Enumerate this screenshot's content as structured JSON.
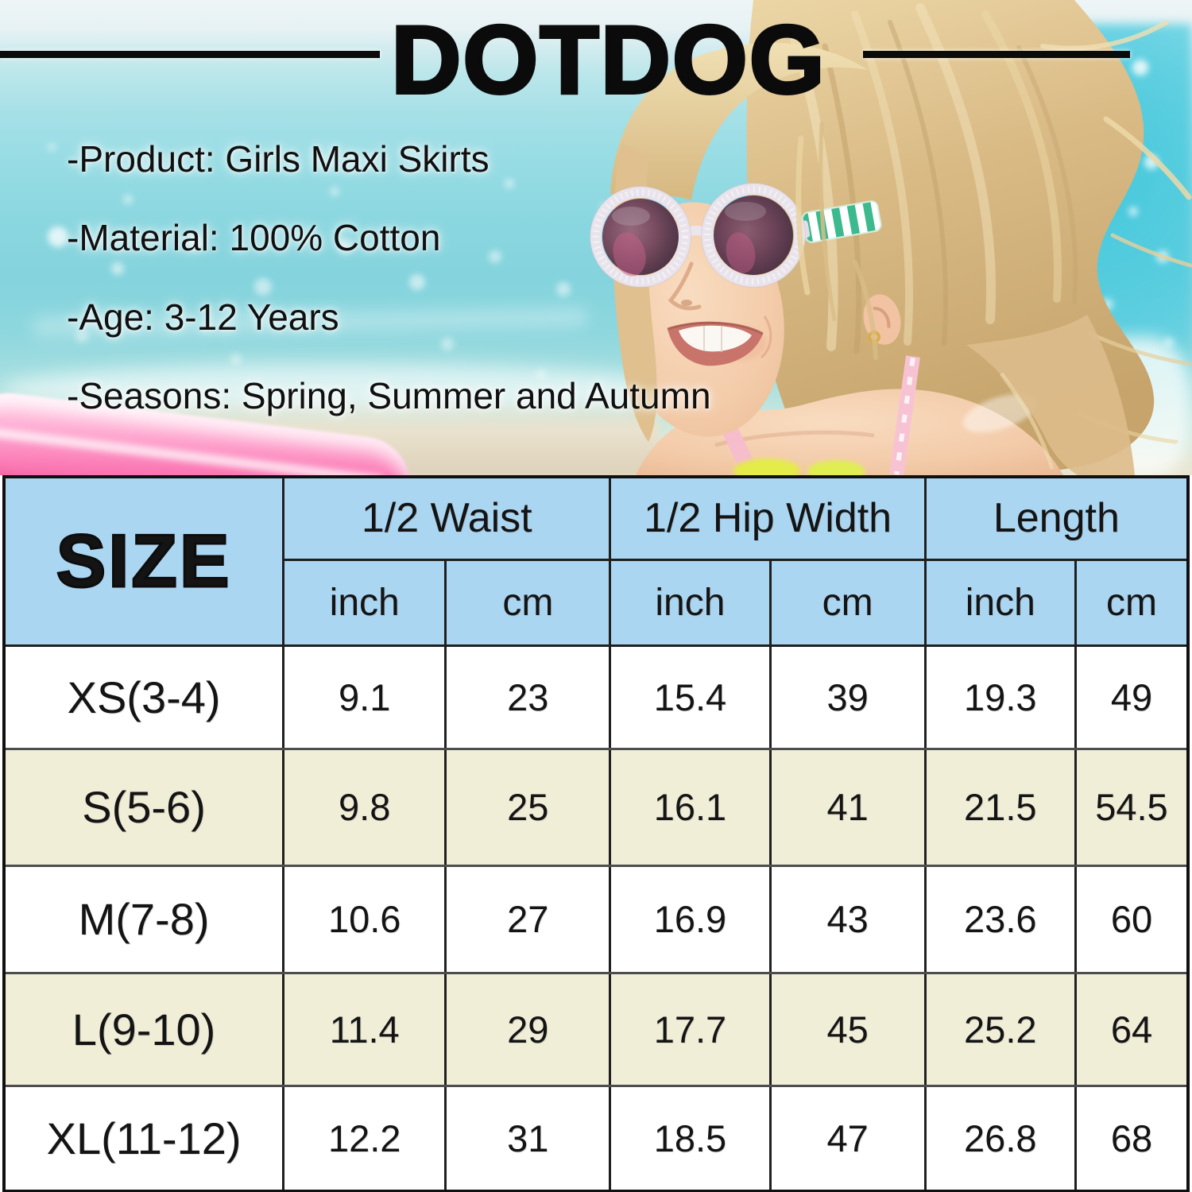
{
  "brand": {
    "name": "DOTDOG"
  },
  "details": {
    "lines": [
      "-Product: Girls Maxi Skirts",
      "-Material: 100% Cotton",
      "-Age: 3-12 Years",
      "-Seasons: Spring, Summer and Autumn"
    ]
  },
  "size_chart": {
    "size_label": "SIZE",
    "groups": [
      {
        "label": "1/2 Waist",
        "units": [
          "inch",
          "cm"
        ]
      },
      {
        "label": "1/2 Hip Width",
        "units": [
          "inch",
          "cm"
        ]
      },
      {
        "label": "Length",
        "units": [
          "inch",
          "cm"
        ]
      }
    ],
    "rows": [
      {
        "size": "XS(3-4)",
        "values": [
          "9.1",
          "23",
          "15.4",
          "39",
          "19.3",
          "49"
        ]
      },
      {
        "size": "S(5-6)",
        "values": [
          "9.8",
          "25",
          "16.1",
          "41",
          "21.5",
          "54.5"
        ]
      },
      {
        "size": "M(7-8)",
        "values": [
          "10.6",
          "27",
          "16.9",
          "43",
          "23.6",
          "60"
        ]
      },
      {
        "size": "L(9-10)",
        "values": [
          "11.4",
          "29",
          "17.7",
          "45",
          "25.2",
          "64"
        ]
      },
      {
        "size": "XL(11-12)",
        "values": [
          "12.2",
          "31",
          "18.5",
          "47",
          "26.8",
          "68"
        ]
      }
    ]
  },
  "colors": {
    "header_blue": "#abd6f2",
    "row_cream": "#f1eed8",
    "row_white": "#ffffff",
    "table_border": "#1f1f1f",
    "row_divider": "#4d4d4d",
    "title_black": "#0b0b0b",
    "water_turquoise": "#8fd9e3",
    "float_pink": "#f768a9",
    "stripe_green": "#3cb98d"
  }
}
